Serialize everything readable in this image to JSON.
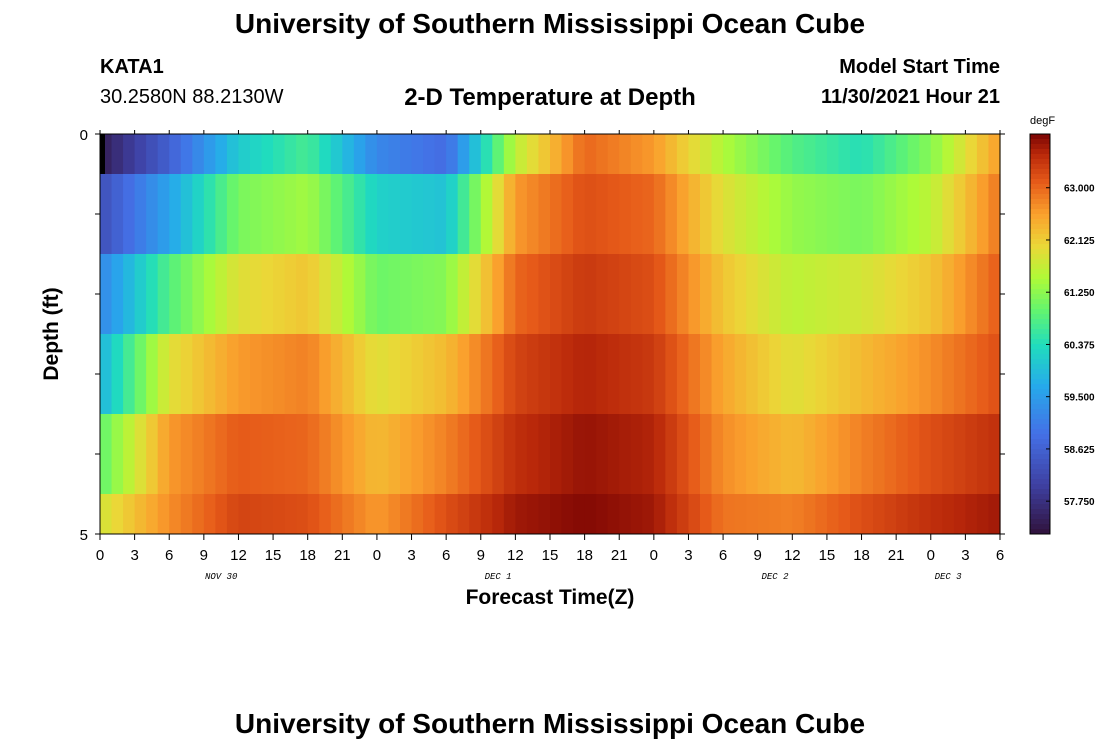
{
  "page": {
    "title": "University of Southern Mississippi Ocean Cube",
    "footer_title": "University of Southern Mississippi Ocean Cube"
  },
  "station": {
    "id": "KATA1",
    "coords": "30.2580N  88.2130W"
  },
  "model": {
    "label": "Model Start Time",
    "time": "11/30/2021 Hour 21"
  },
  "chart_data": {
    "type": "heatmap",
    "title": "2-D Temperature at Depth",
    "xlabel": "Forecast Time(Z)",
    "ylabel": "Depth (ft)",
    "units": "degF",
    "y_ticks": [
      "0",
      "5"
    ],
    "ylim": [
      0,
      5
    ],
    "x_ticks": [
      "0",
      "3",
      "6",
      "9",
      "12",
      "15",
      "18",
      "21",
      "0",
      "3",
      "6",
      "9",
      "12",
      "15",
      "18",
      "21",
      "0",
      "3",
      "6",
      "9",
      "12",
      "15",
      "18",
      "21",
      "0",
      "3",
      "6"
    ],
    "date_labels": [
      {
        "text": "NOV 30",
        "tick_index": 3.5
      },
      {
        "text": "DEC 1",
        "tick_index": 11.5
      },
      {
        "text": "DEC 2",
        "tick_index": 19.5
      },
      {
        "text": "DEC 3",
        "tick_index": 24.5
      }
    ],
    "colorbar": {
      "min": 57.2,
      "max": 63.9,
      "ticks": [
        "57.750",
        "58.625",
        "59.500",
        "60.375",
        "61.250",
        "62.125",
        "63.000"
      ]
    },
    "time_hours": [
      0,
      6,
      12,
      18,
      24,
      30,
      36,
      42,
      48,
      54,
      60,
      66,
      72,
      78
    ],
    "depth_layers": [
      {
        "depth": 0,
        "values": [
          57.4,
          58.6,
          60.1,
          60.7,
          59.2,
          58.8,
          61.6,
          63.0,
          62.6,
          61.5,
          60.8,
          60.4,
          61.2,
          62.6
        ]
      },
      {
        "depth": 1,
        "values": [
          58.3,
          59.6,
          61.1,
          61.4,
          60.2,
          60.0,
          62.6,
          63.2,
          63.0,
          61.9,
          61.3,
          61.1,
          61.6,
          62.9
        ]
      },
      {
        "depth": 2,
        "values": [
          59.2,
          60.8,
          61.9,
          62.2,
          61.0,
          61.2,
          63.0,
          63.4,
          63.2,
          62.2,
          61.6,
          61.8,
          62.2,
          63.1
        ]
      },
      {
        "depth": 3,
        "values": [
          59.8,
          61.9,
          62.6,
          62.8,
          61.9,
          62.3,
          63.3,
          63.6,
          63.4,
          62.5,
          61.9,
          62.3,
          62.7,
          63.2
        ]
      },
      {
        "depth": 4,
        "values": [
          60.9,
          62.6,
          63.1,
          63.0,
          62.3,
          62.8,
          63.5,
          63.75,
          63.6,
          62.7,
          62.3,
          62.8,
          63.2,
          63.5
        ]
      },
      {
        "depth": 5,
        "values": [
          61.8,
          62.7,
          63.3,
          63.2,
          62.6,
          63.2,
          63.7,
          63.85,
          63.7,
          62.9,
          62.8,
          63.2,
          63.5,
          63.7
        ]
      }
    ]
  }
}
